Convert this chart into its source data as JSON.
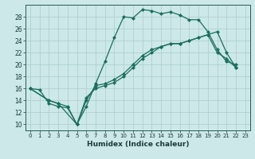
{
  "xlabel": "Humidex (Indice chaleur)",
  "ylabel": "",
  "bg_color": "#cce8e8",
  "grid_color": "#aacccc",
  "line_color": "#1a6e5e",
  "xlim": [
    -0.5,
    23.5
  ],
  "ylim": [
    9,
    30
  ],
  "yticks": [
    10,
    12,
    14,
    16,
    18,
    20,
    22,
    24,
    26,
    28
  ],
  "xticks": [
    0,
    1,
    2,
    3,
    4,
    5,
    6,
    7,
    8,
    9,
    10,
    11,
    12,
    13,
    14,
    15,
    16,
    17,
    18,
    19,
    20,
    21,
    22,
    23
  ],
  "line1_x": [
    0,
    1,
    2,
    3,
    4,
    5,
    6,
    7,
    8,
    9,
    10,
    11,
    12,
    13,
    14,
    15,
    16,
    17,
    18,
    19,
    20,
    21,
    22
  ],
  "line1_y": [
    16,
    15.8,
    13.5,
    13,
    12.8,
    10,
    13,
    16.8,
    20.5,
    24.5,
    28,
    27.8,
    29.2,
    29,
    28.5,
    28.8,
    28.3,
    27.5,
    27.5,
    25.5,
    22.5,
    20.5,
    20
  ],
  "line2_x": [
    0,
    2,
    3,
    5,
    6,
    7,
    8,
    9,
    10,
    11,
    12,
    13,
    14,
    15,
    16,
    17,
    18,
    19,
    20,
    21,
    22
  ],
  "line2_y": [
    16,
    14,
    13.5,
    10,
    14,
    16.5,
    16.8,
    17.5,
    18.5,
    20,
    21.5,
    22.5,
    23,
    23.5,
    23.5,
    24,
    24.5,
    25,
    22,
    21,
    19.5
  ],
  "line3_x": [
    0,
    2,
    3,
    4,
    5,
    6,
    7,
    8,
    9,
    10,
    11,
    12,
    13,
    14,
    15,
    16,
    17,
    18,
    19,
    20,
    21,
    22
  ],
  "line3_y": [
    16,
    14,
    13.5,
    13,
    10,
    14.5,
    16,
    16.5,
    17,
    18,
    19.5,
    21,
    22,
    23,
    23.5,
    23.5,
    24,
    24.5,
    25,
    25.5,
    22,
    19.5
  ]
}
